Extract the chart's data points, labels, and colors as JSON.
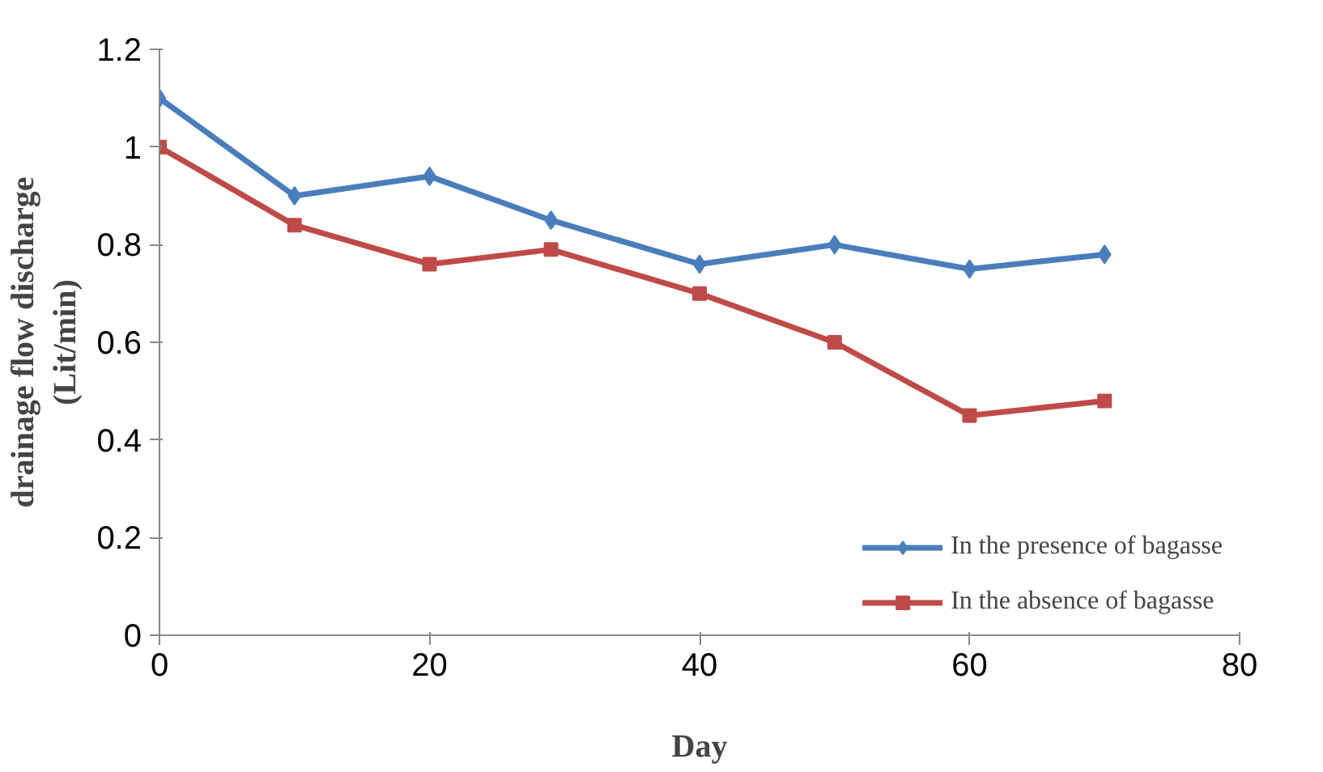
{
  "chart_data": {
    "type": "line",
    "xlabel": "Day",
    "ylabel": "drainage flow discharge\n(Lit/min)",
    "x": [
      0,
      10,
      20,
      29,
      40,
      50,
      60,
      70
    ],
    "series": [
      {
        "name": "In the presence of bagasse",
        "color": "#4a7ebb",
        "marker": "diamond",
        "values": [
          1.1,
          0.9,
          0.94,
          0.85,
          0.76,
          0.8,
          0.75,
          0.78
        ]
      },
      {
        "name": "In the absence of bagasse",
        "color": "#be4b48",
        "marker": "square",
        "values": [
          1.0,
          0.84,
          0.76,
          0.79,
          0.7,
          0.6,
          0.45,
          0.48
        ]
      }
    ],
    "xlim": [
      0,
      80
    ],
    "xticks": [
      0,
      20,
      40,
      60,
      80
    ],
    "ylim": [
      0,
      1.2
    ],
    "yticks": [
      0,
      0.2,
      0.4,
      0.6,
      0.8,
      1,
      1.2
    ],
    "grid": false,
    "legend": "bottom right"
  }
}
